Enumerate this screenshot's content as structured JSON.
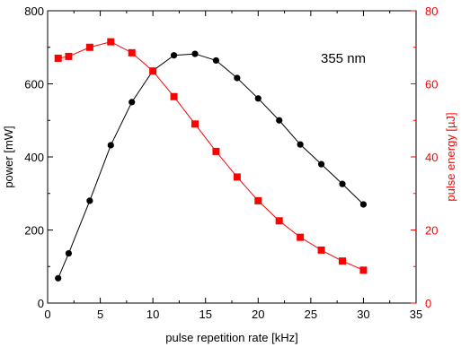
{
  "chart_data": {
    "type": "line",
    "title": "",
    "annotation": "355 nm",
    "xlabel": "pulse repetition rate [kHz]",
    "ylabel_left": "power [mW]",
    "ylabel_right": "pulse energy [µJ]",
    "xlim": [
      0,
      35
    ],
    "ylim_left": [
      0,
      800
    ],
    "ylim_right": [
      0,
      80
    ],
    "xticks": [
      0,
      5,
      10,
      15,
      20,
      25,
      30,
      35
    ],
    "yticks_left": [
      0,
      200,
      400,
      600,
      800
    ],
    "yticks_right": [
      0,
      20,
      40,
      60,
      80
    ],
    "grid": false,
    "legend": "none",
    "series": [
      {
        "axis": "left",
        "marker": "circle",
        "color": "#000000",
        "x": [
          1,
          2,
          4,
          6,
          8,
          10,
          12,
          14,
          16,
          18,
          20,
          22,
          24,
          26,
          28,
          30
        ],
        "y": [
          68,
          136,
          280,
          432,
          550,
          636,
          678,
          682,
          664,
          616,
          560,
          500,
          434,
          380,
          326,
          270
        ]
      },
      {
        "axis": "right",
        "marker": "square",
        "color": "#ff0000",
        "x": [
          1,
          2,
          4,
          6,
          8,
          10,
          12,
          14,
          16,
          18,
          20,
          22,
          24,
          26,
          28,
          30
        ],
        "y": [
          67,
          67.5,
          70,
          71.5,
          68.5,
          63.5,
          56.5,
          49,
          41.5,
          34.5,
          28,
          22.5,
          18,
          14.5,
          11.5,
          9
        ]
      }
    ]
  },
  "colors": {
    "left_axis": "#000000",
    "right_axis": "#ff0000"
  }
}
